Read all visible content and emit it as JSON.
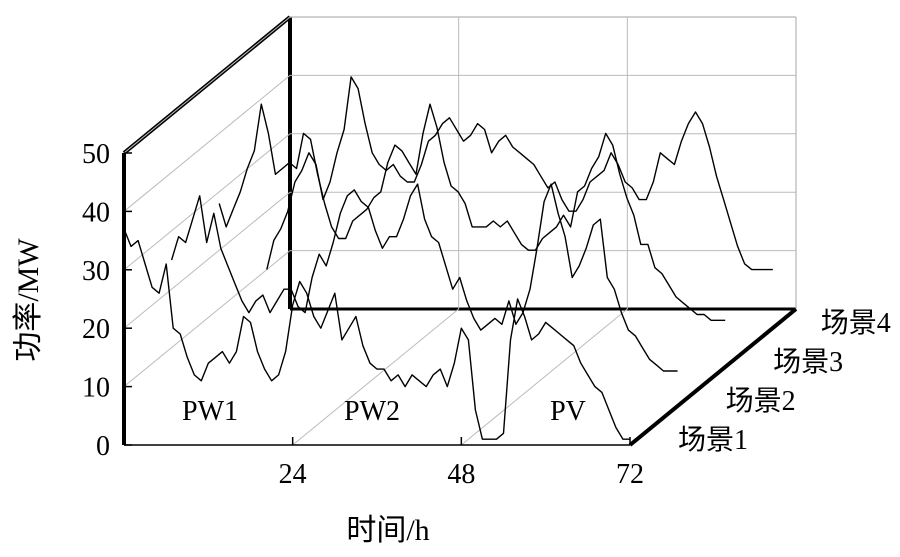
{
  "chart_data": {
    "type": "line",
    "style": "3d-waterfall",
    "xlabel": "时间/h",
    "ylabel": "功率/MW",
    "x_ticks": [
      24,
      48,
      72
    ],
    "y_ticks": [
      0,
      10,
      20,
      30,
      40,
      50
    ],
    "xlim": [
      0,
      72
    ],
    "ylim": [
      0,
      50
    ],
    "grid": true,
    "annotations": [
      "PW1",
      "PW2",
      "PV"
    ],
    "series": [
      {
        "name": "场景1",
        "x": [
          0,
          1,
          2,
          3,
          4,
          5,
          6,
          7,
          8,
          9,
          10,
          11,
          12,
          13,
          14,
          15,
          16,
          17,
          18,
          19,
          20,
          21,
          22,
          23,
          24,
          25,
          26,
          27,
          28,
          29,
          30,
          31,
          32,
          33,
          34,
          35,
          36,
          37,
          38,
          39,
          40,
          41,
          42,
          43,
          44,
          45,
          46,
          47,
          48,
          49,
          50,
          51,
          52,
          53,
          54,
          55,
          56,
          57,
          58,
          59,
          60,
          61,
          62,
          63,
          64,
          65,
          66,
          67,
          68,
          69,
          70,
          71,
          72
        ],
        "values": [
          37,
          34,
          35,
          31,
          27,
          26,
          31,
          20,
          19,
          15,
          12,
          11,
          14,
          15,
          16,
          14,
          16,
          22,
          21,
          16,
          13,
          11,
          12,
          16,
          24,
          28,
          26,
          22,
          20,
          23,
          26,
          18,
          20,
          22,
          17,
          14,
          13,
          13,
          11,
          12,
          10,
          12,
          11,
          10,
          12,
          13,
          10,
          14,
          20,
          18,
          6,
          1,
          1,
          1,
          2,
          18,
          25,
          22,
          18,
          19,
          21,
          20,
          19,
          18,
          17,
          14,
          12,
          10,
          9,
          6,
          3,
          1,
          1
        ]
      },
      {
        "name": "场景2",
        "x": [
          0,
          1,
          2,
          3,
          4,
          5,
          6,
          7,
          8,
          9,
          10,
          11,
          12,
          13,
          14,
          15,
          16,
          17,
          18,
          19,
          20,
          21,
          22,
          23,
          24,
          25,
          26,
          27,
          28,
          29,
          30,
          31,
          32,
          33,
          34,
          35,
          36,
          37,
          38,
          39,
          40,
          41,
          42,
          43,
          44,
          45,
          46,
          47,
          48,
          49,
          50,
          51,
          52,
          53,
          54,
          55,
          56,
          57,
          58,
          59,
          60,
          61,
          62,
          63,
          64,
          65,
          66,
          67,
          68,
          69,
          70,
          71,
          72
        ],
        "values": [
          25,
          29,
          28,
          32,
          36,
          28,
          33,
          27,
          24,
          21,
          18,
          16,
          18,
          19,
          16,
          18,
          20,
          20,
          17,
          16,
          22,
          26,
          24,
          28,
          33,
          36,
          37,
          35,
          34,
          30,
          27,
          29,
          29,
          32,
          36,
          38,
          32,
          29,
          28,
          24,
          20,
          22,
          18,
          15,
          13,
          14,
          15,
          14,
          18,
          14,
          16,
          20,
          27,
          35,
          38,
          33,
          29,
          22,
          24,
          27,
          31,
          32,
          22,
          20,
          16,
          13,
          12,
          10,
          8,
          7,
          6,
          6,
          6
        ]
      },
      {
        "name": "场景3",
        "x": [
          0,
          1,
          2,
          3,
          4,
          5,
          6,
          7,
          8,
          9,
          10,
          11,
          12,
          13,
          14,
          15,
          16,
          17,
          18,
          19,
          20,
          21,
          22,
          23,
          24,
          25,
          26,
          27,
          28,
          29,
          30,
          31,
          32,
          33,
          34,
          35,
          36,
          37,
          38,
          39,
          40,
          41,
          42,
          43,
          44,
          45,
          46,
          47,
          48,
          49,
          50,
          51,
          52,
          53,
          54,
          55,
          56,
          57,
          58,
          59,
          60,
          61,
          62,
          63,
          64,
          65,
          66,
          67,
          68,
          69,
          70,
          71,
          72
        ],
        "values": [
          28,
          24,
          27,
          30,
          34,
          37,
          45,
          40,
          33,
          34,
          35,
          34,
          40,
          39,
          33,
          28,
          24,
          22,
          22,
          25,
          26,
          27,
          29,
          30,
          35,
          38,
          37,
          35,
          33,
          40,
          45,
          41,
          35,
          31,
          30,
          28,
          24,
          24,
          24,
          25,
          24,
          25,
          23,
          21,
          20,
          20,
          22,
          23,
          24,
          26,
          24,
          30,
          31,
          34,
          36,
          40,
          38,
          33,
          29,
          26,
          21,
          21,
          17,
          16,
          14,
          12,
          11,
          10,
          9,
          9,
          8,
          8,
          8
        ]
      },
      {
        "name": "场景4",
        "x": [
          0,
          1,
          2,
          3,
          4,
          5,
          6,
          7,
          8,
          9,
          10,
          11,
          12,
          13,
          14,
          15,
          16,
          17,
          18,
          19,
          20,
          21,
          22,
          23,
          24,
          25,
          26,
          27,
          28,
          29,
          30,
          31,
          32,
          33,
          34,
          35,
          36,
          37,
          38,
          39,
          40,
          41,
          42,
          43,
          44,
          45,
          46,
          47,
          48,
          49,
          50,
          51,
          52,
          53,
          54,
          55,
          56,
          57,
          58,
          59,
          60,
          61,
          62,
          63,
          64,
          65,
          66,
          67,
          68,
          69,
          70,
          71,
          72
        ],
        "values": [
          10,
          15,
          17,
          20,
          25,
          27,
          30,
          28,
          22,
          25,
          30,
          34,
          43,
          41,
          35,
          30,
          28,
          27,
          28,
          26,
          25,
          25,
          28,
          32,
          33,
          35,
          36,
          34,
          32,
          33,
          35,
          34,
          30,
          32,
          33,
          31,
          30,
          29,
          28,
          26,
          24,
          25,
          22,
          20,
          20,
          22,
          25,
          26,
          27,
          30,
          28,
          25,
          24,
          22,
          22,
          25,
          30,
          29,
          28,
          32,
          35,
          37,
          35,
          31,
          26,
          22,
          18,
          14,
          11,
          10,
          10,
          10,
          10
        ]
      }
    ]
  }
}
